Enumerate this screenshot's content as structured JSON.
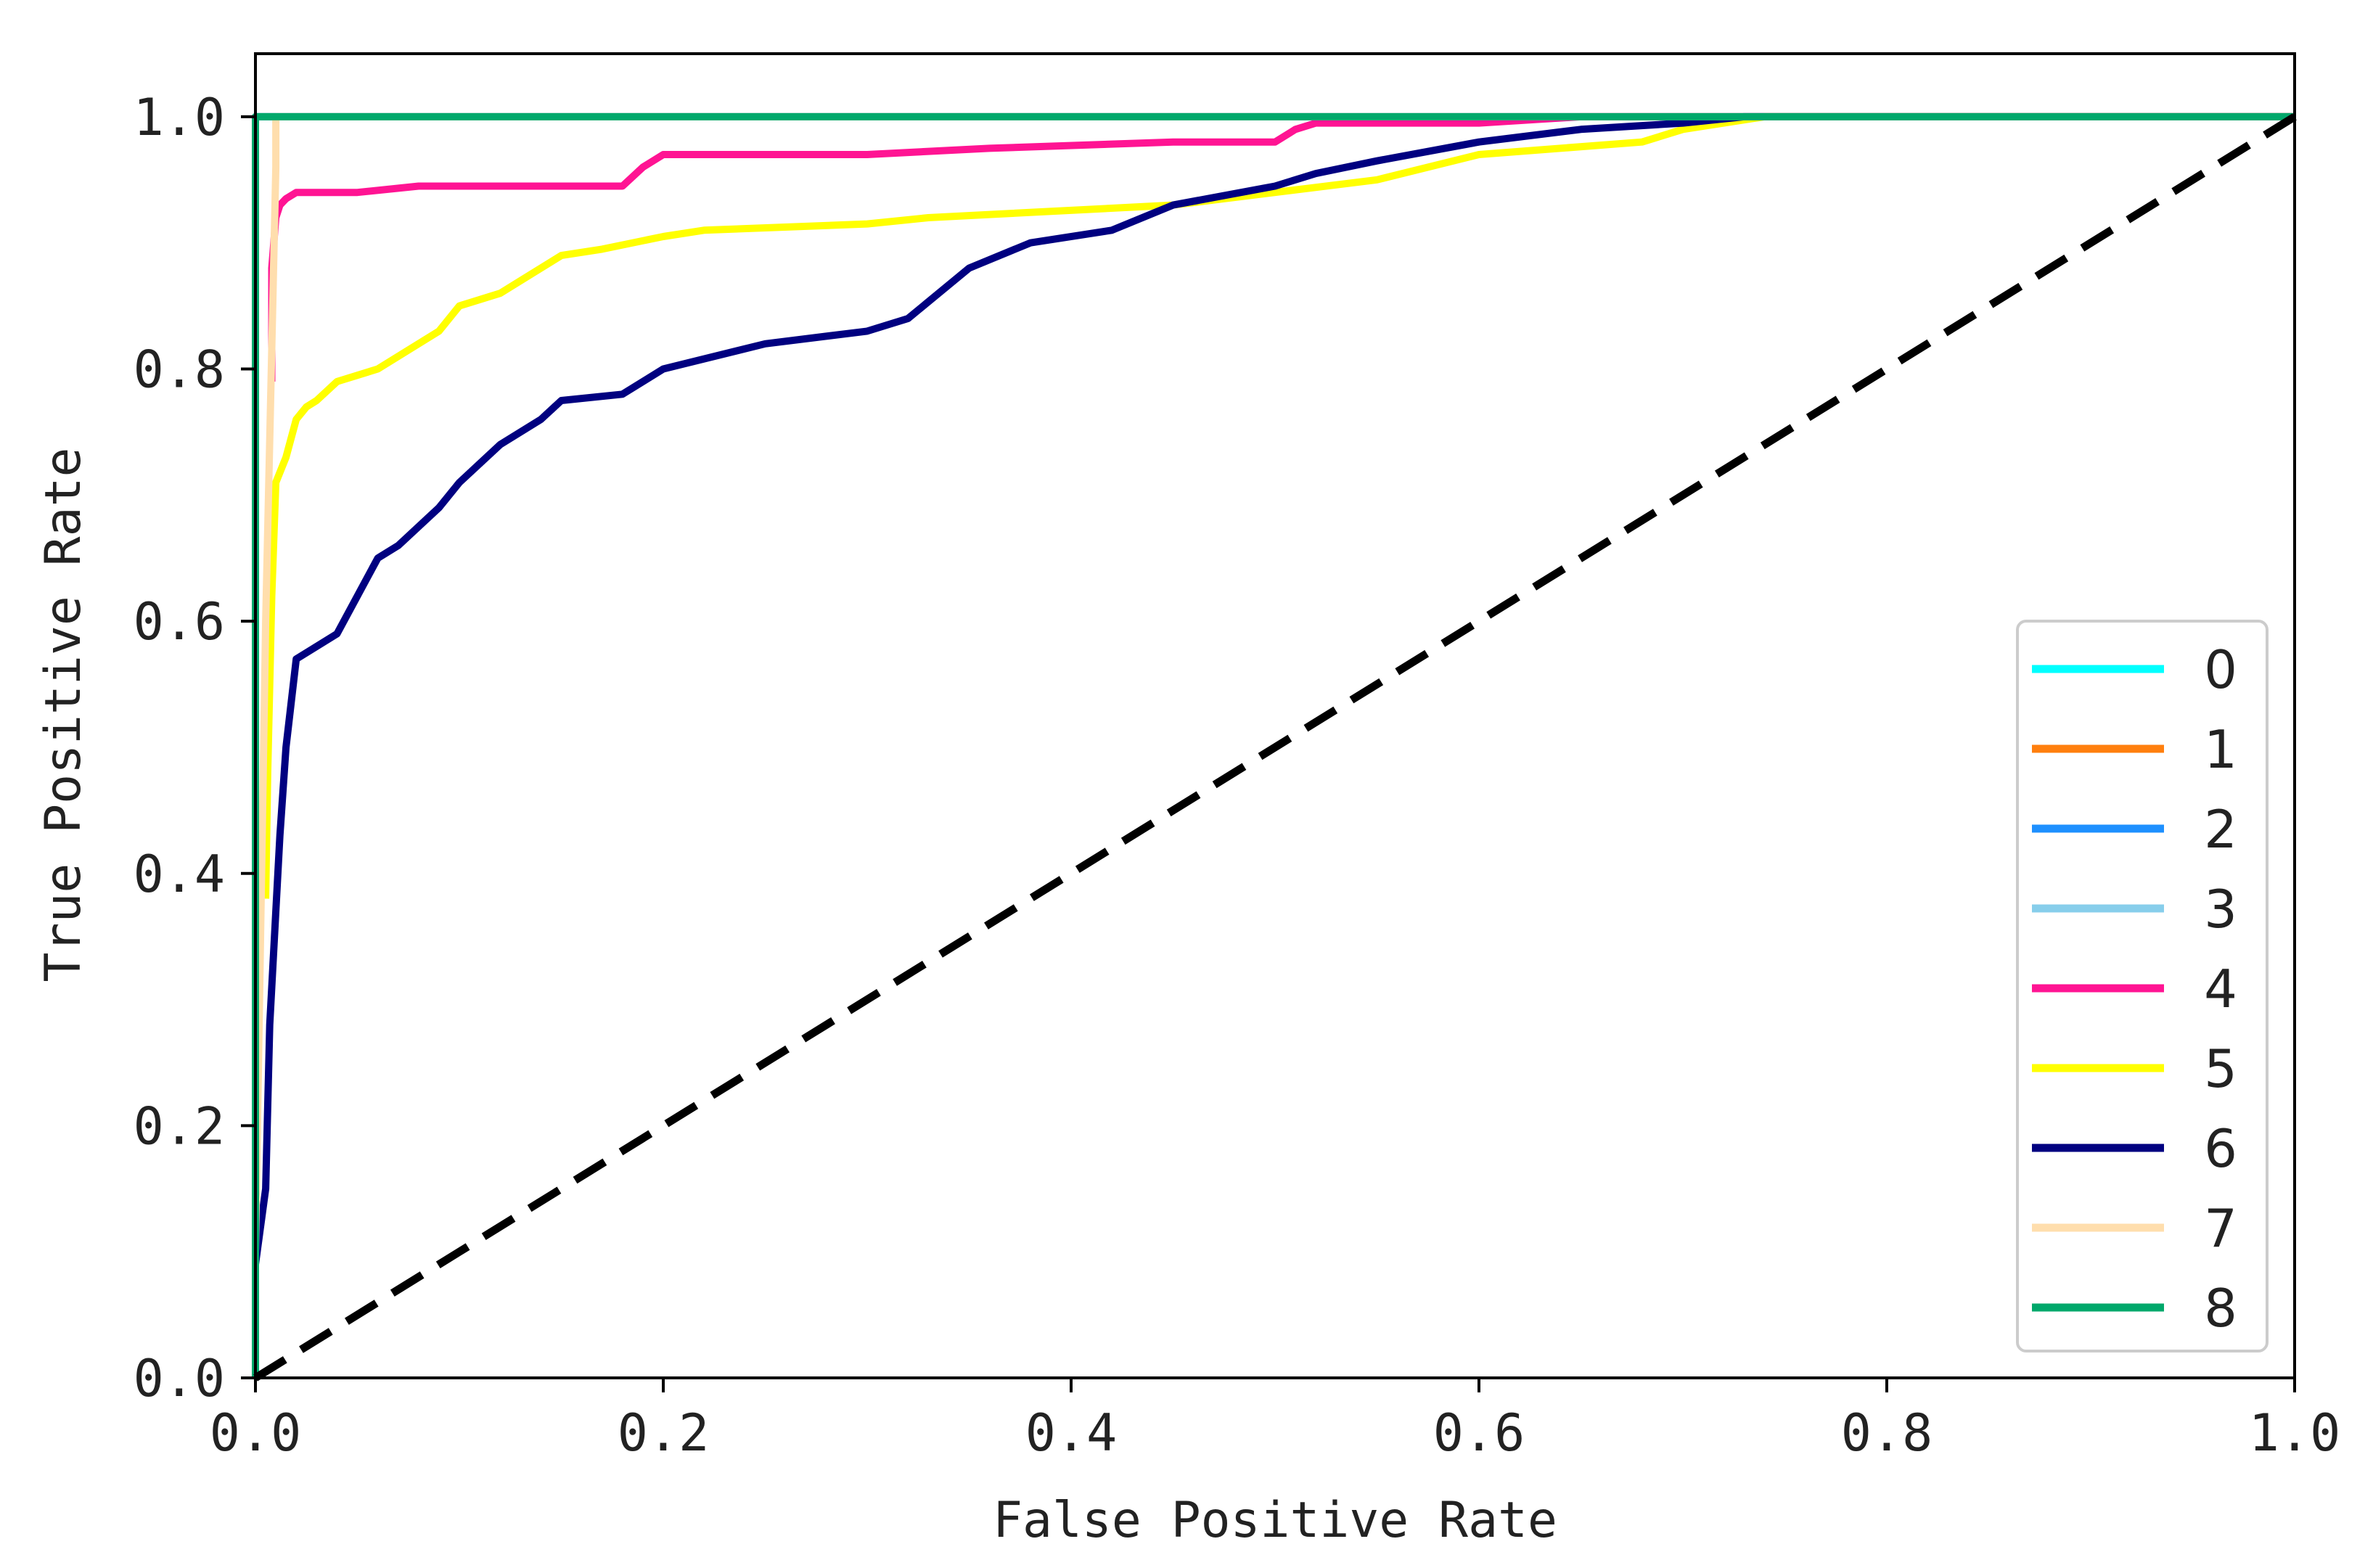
{
  "chart_data": {
    "type": "line",
    "title": "",
    "xlabel": "False Positive Rate",
    "ylabel": "True Positive Rate",
    "xlim": [
      0.0,
      1.0
    ],
    "ylim": [
      0.0,
      1.05
    ],
    "xticks": [
      "0.0",
      "0.2",
      "0.4",
      "0.6",
      "0.8",
      "1.0"
    ],
    "yticks": [
      "0.0",
      "0.2",
      "0.4",
      "0.6",
      "0.8",
      "1.0"
    ],
    "grid": false,
    "legend_position": "lower-right",
    "diagonal": {
      "x": [
        0.0,
        1.0
      ],
      "y": [
        0.0,
        1.0
      ],
      "color": "#000000",
      "style": "dashed"
    },
    "series": [
      {
        "name": "0",
        "color": "#00ffff",
        "x": [
          0.0,
          0.0,
          1.0
        ],
        "y": [
          0.0,
          1.0,
          1.0
        ]
      },
      {
        "name": "1",
        "color": "#ff7f0e",
        "x": [
          0.0,
          0.0,
          1.0
        ],
        "y": [
          0.0,
          1.0,
          1.0
        ]
      },
      {
        "name": "2",
        "color": "#1e90ff",
        "x": [
          0.0,
          0.0,
          1.0
        ],
        "y": [
          0.0,
          1.0,
          1.0
        ]
      },
      {
        "name": "3",
        "color": "#87ceeb",
        "x": [
          0.0,
          0.0,
          1.0
        ],
        "y": [
          0.0,
          1.0,
          1.0
        ]
      },
      {
        "name": "4",
        "color": "#ff1493",
        "x": [
          0.008,
          0.008,
          0.01,
          0.012,
          0.015,
          0.02,
          0.05,
          0.08,
          0.12,
          0.18,
          0.19,
          0.2,
          0.3,
          0.36,
          0.45,
          0.5,
          0.51,
          0.52,
          0.6,
          0.65,
          0.7,
          1.0
        ],
        "y": [
          0.79,
          0.88,
          0.92,
          0.93,
          0.935,
          0.94,
          0.94,
          0.945,
          0.945,
          0.945,
          0.96,
          0.97,
          0.97,
          0.975,
          0.98,
          0.98,
          0.99,
          0.995,
          0.995,
          1.0,
          1.0,
          1.0
        ]
      },
      {
        "name": "5",
        "color": "#ffff00",
        "x": [
          0.005,
          0.006,
          0.008,
          0.01,
          0.015,
          0.02,
          0.025,
          0.03,
          0.04,
          0.06,
          0.07,
          0.09,
          0.1,
          0.12,
          0.14,
          0.15,
          0.17,
          0.2,
          0.22,
          0.3,
          0.33,
          0.45,
          0.5,
          0.55,
          0.6,
          0.68,
          0.7,
          0.74,
          1.0
        ],
        "y": [
          0.38,
          0.48,
          0.62,
          0.71,
          0.73,
          0.76,
          0.77,
          0.775,
          0.79,
          0.8,
          0.81,
          0.83,
          0.85,
          0.86,
          0.88,
          0.89,
          0.895,
          0.905,
          0.91,
          0.915,
          0.92,
          0.93,
          0.94,
          0.95,
          0.97,
          0.98,
          0.99,
          1.0,
          1.0
        ]
      },
      {
        "name": "6",
        "color": "#000080",
        "x": [
          0.0,
          0.0,
          0.005,
          0.007,
          0.01,
          0.012,
          0.015,
          0.02,
          0.04,
          0.05,
          0.06,
          0.07,
          0.09,
          0.1,
          0.12,
          0.14,
          0.15,
          0.18,
          0.2,
          0.25,
          0.3,
          0.32,
          0.35,
          0.38,
          0.42,
          0.45,
          0.5,
          0.52,
          0.55,
          0.6,
          0.65,
          0.7,
          0.73,
          1.0
        ],
        "y": [
          0.0,
          0.09,
          0.15,
          0.28,
          0.37,
          0.43,
          0.5,
          0.57,
          0.59,
          0.62,
          0.65,
          0.66,
          0.69,
          0.71,
          0.74,
          0.76,
          0.775,
          0.78,
          0.8,
          0.82,
          0.83,
          0.84,
          0.88,
          0.9,
          0.91,
          0.93,
          0.945,
          0.955,
          0.965,
          0.98,
          0.99,
          0.995,
          1.0,
          1.0
        ]
      },
      {
        "name": "7",
        "color": "#ffdead",
        "x": [
          0.0,
          0.0,
          0.005,
          0.01,
          0.01,
          1.0
        ],
        "y": [
          0.0,
          0.1,
          0.6,
          0.96,
          1.0,
          1.0
        ]
      },
      {
        "name": "8",
        "color": "#00a86b",
        "x": [
          0.0,
          0.0,
          1.0
        ],
        "y": [
          0.0,
          1.0,
          1.0
        ]
      }
    ]
  }
}
